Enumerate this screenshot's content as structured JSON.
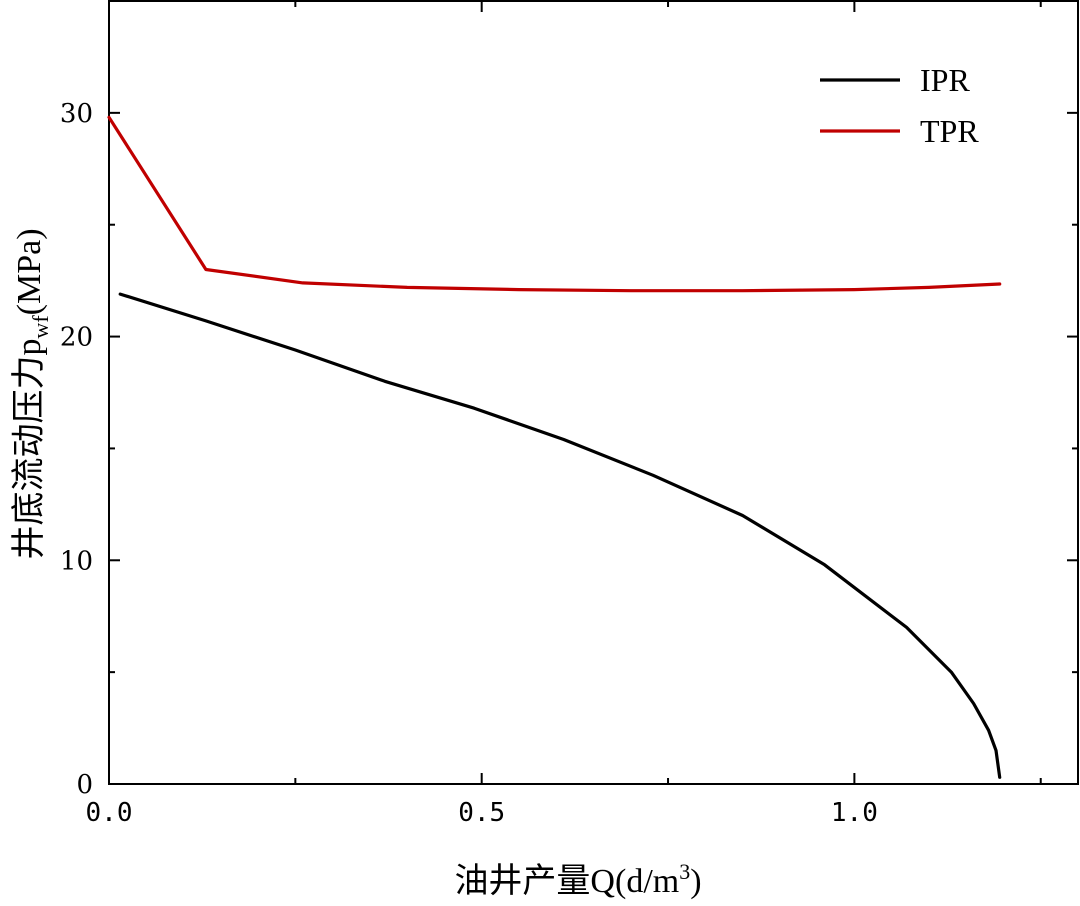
{
  "chart_data": {
    "type": "line",
    "title": "",
    "xlabel": {
      "text": "油井产量Q(d/m",
      "sup": "3",
      "close": ")"
    },
    "ylabel": {
      "prefix": "井底流动压力p",
      "sub": "wf",
      "suffix": "(MPa)"
    },
    "xlim": [
      0,
      1.3
    ],
    "ylim": [
      0,
      35
    ],
    "xticks": [
      {
        "value": 0.0,
        "label": "0.0"
      },
      {
        "value": 0.5,
        "label": "0.5"
      },
      {
        "value": 1.0,
        "label": "1.0"
      }
    ],
    "xminor": [
      0.25,
      0.75,
      1.25
    ],
    "yticks": [
      {
        "value": 0,
        "label": "0"
      },
      {
        "value": 10,
        "label": "10"
      },
      {
        "value": 20,
        "label": "20"
      },
      {
        "value": 30,
        "label": "30"
      }
    ],
    "yminor": [
      5,
      15,
      25
    ],
    "legend_position": "top-right",
    "series": [
      {
        "name": "IPR",
        "color": "#000000",
        "x": [
          0.015,
          0.13,
          0.25,
          0.37,
          0.49,
          0.61,
          0.73,
          0.85,
          0.96,
          1.07,
          1.13,
          1.16,
          1.18,
          1.19,
          1.195
        ],
        "y": [
          21.9,
          20.7,
          19.4,
          18.0,
          16.8,
          15.4,
          13.8,
          12.0,
          9.8,
          7.0,
          5.0,
          3.6,
          2.4,
          1.5,
          0.3
        ]
      },
      {
        "name": "TPR",
        "color": "#C00000",
        "x": [
          0.0,
          0.13,
          0.26,
          0.4,
          0.55,
          0.7,
          0.85,
          1.0,
          1.1,
          1.195
        ],
        "y": [
          29.8,
          23.0,
          22.4,
          22.2,
          22.1,
          22.05,
          22.05,
          22.1,
          22.2,
          22.35
        ]
      }
    ]
  }
}
